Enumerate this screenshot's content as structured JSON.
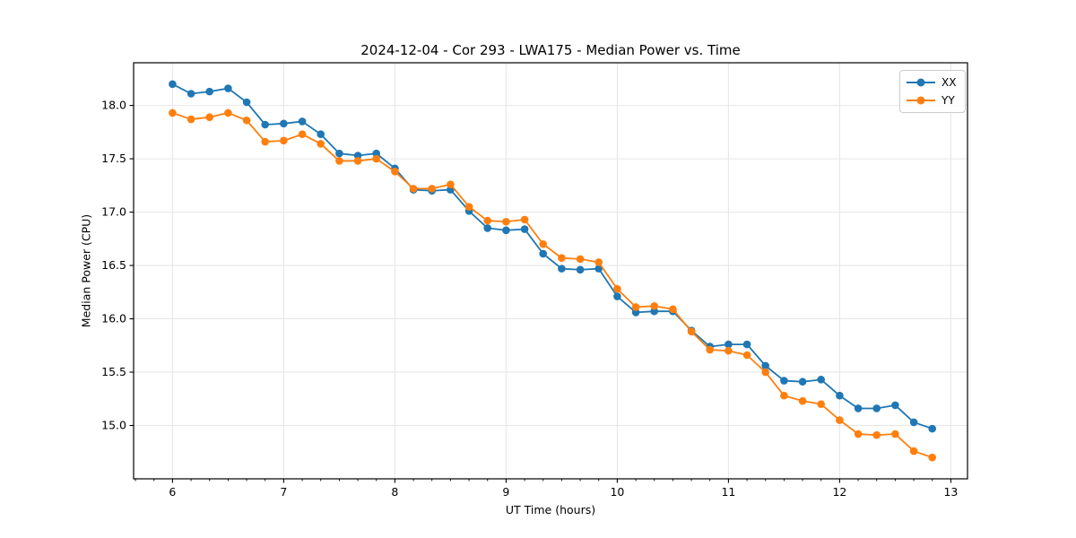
{
  "chart_data": {
    "type": "line",
    "title": "2024-12-04 - Cor 293 - LWA175 - Median Power vs. Time",
    "xlabel": "UT Time (hours)",
    "ylabel": "Median Power (CPU)",
    "xlim": [
      5.65,
      13.15
    ],
    "ylim": [
      14.5,
      18.4
    ],
    "xticks": [
      6,
      7,
      8,
      9,
      10,
      11,
      12,
      13
    ],
    "xtick_labels": [
      "6",
      "7",
      "8",
      "9",
      "10",
      "11",
      "12",
      "13"
    ],
    "x_minor_interval": 0.1666667,
    "yticks": [
      15.0,
      15.5,
      16.0,
      16.5,
      17.0,
      17.5,
      18.0
    ],
    "ytick_labels": [
      "15.0",
      "15.5",
      "16.0",
      "16.5",
      "17.0",
      "17.5",
      "18.0"
    ],
    "grid": true,
    "grid_color": "#e6e6e6",
    "legend_position": "upper right",
    "marker": "circle",
    "x": [
      6.0,
      6.167,
      6.333,
      6.5,
      6.667,
      6.833,
      7.0,
      7.167,
      7.333,
      7.5,
      7.667,
      7.833,
      8.0,
      8.167,
      8.333,
      8.5,
      8.667,
      8.833,
      9.0,
      9.167,
      9.333,
      9.5,
      9.667,
      9.833,
      10.0,
      10.167,
      10.333,
      10.5,
      10.667,
      10.833,
      11.0,
      11.167,
      11.333,
      11.5,
      11.667,
      11.833,
      12.0,
      12.167,
      12.333,
      12.5,
      12.667,
      12.833
    ],
    "series": [
      {
        "name": "XX",
        "color": "#1f77b4",
        "values": [
          18.2,
          18.11,
          18.13,
          18.16,
          18.03,
          17.82,
          17.83,
          17.85,
          17.73,
          17.55,
          17.53,
          17.55,
          17.41,
          17.21,
          17.2,
          17.21,
          17.01,
          16.85,
          16.83,
          16.84,
          16.61,
          16.47,
          16.46,
          16.47,
          16.21,
          16.06,
          16.07,
          16.07,
          15.89,
          15.74,
          15.76,
          15.76,
          15.56,
          15.42,
          15.41,
          15.43,
          15.28,
          15.16,
          15.16,
          15.19,
          15.03,
          14.97
        ]
      },
      {
        "name": "YY",
        "color": "#ff7f0e",
        "values": [
          17.93,
          17.87,
          17.89,
          17.93,
          17.86,
          17.66,
          17.67,
          17.73,
          17.64,
          17.48,
          17.48,
          17.5,
          17.38,
          17.22,
          17.22,
          17.26,
          17.05,
          16.92,
          16.91,
          16.93,
          16.7,
          16.57,
          16.56,
          16.53,
          16.28,
          16.11,
          16.12,
          16.09,
          15.88,
          15.71,
          15.7,
          15.66,
          15.5,
          15.28,
          15.23,
          15.2,
          15.05,
          14.92,
          14.91,
          14.92,
          14.76,
          14.7
        ]
      }
    ]
  }
}
